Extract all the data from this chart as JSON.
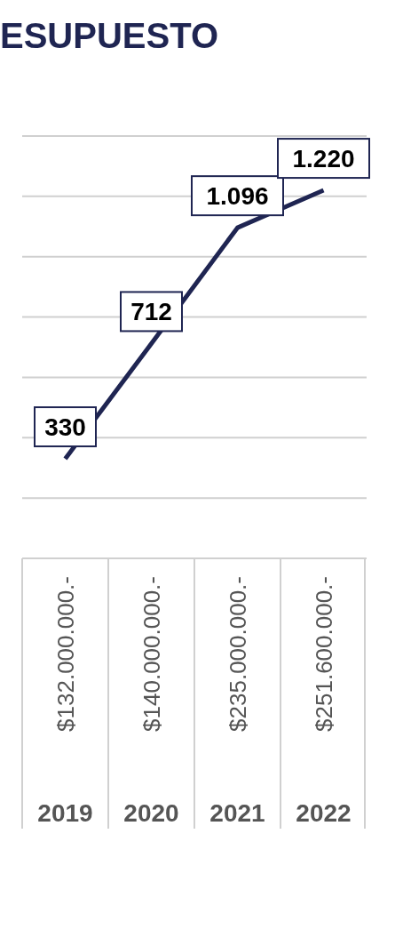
{
  "chart_data": {
    "type": "line",
    "title": "ESUPUESTO",
    "categories": [
      "2019",
      "2020",
      "2021",
      "2022"
    ],
    "series": [
      {
        "color": "#1f2552",
        "values": [
          330,
          712,
          1096,
          1220
        ],
        "value_labels": [
          "330",
          "712",
          "1.096",
          "1.220"
        ]
      }
    ],
    "ylim": [
      0,
      1400
    ],
    "yticks": [
      {
        "value": 0,
        "label": null
      },
      {
        "value": 200,
        "label": null
      },
      {
        "value": 400,
        "label": null
      },
      {
        "value": 600,
        "label": null
      },
      {
        "value": 800,
        "label": null
      },
      {
        "value": 1000,
        "label": null
      },
      {
        "value": 1200,
        "label": null
      },
      {
        "value": 1400,
        "label": null
      }
    ],
    "grid": "y",
    "marker": "none",
    "line_style": "solid",
    "tick_labels": "x",
    "annotations": [
      "$132.000.000.-",
      "$140.000.000.-",
      "$235.000.000.-",
      "$251.600.000.-"
    ]
  }
}
